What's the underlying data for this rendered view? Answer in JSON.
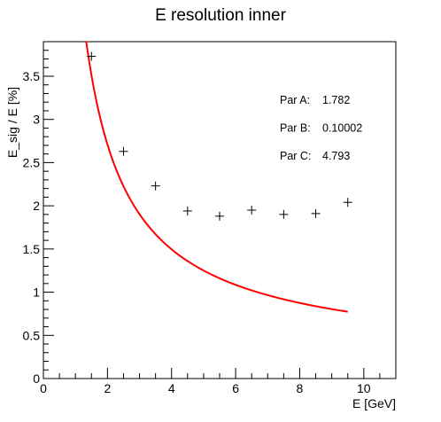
{
  "chart_data": {
    "type": "scatter",
    "title": "E resolution inner",
    "xlabel": "E [GeV]",
    "ylabel": "E_sig / E [%]",
    "xlim": [
      0,
      11
    ],
    "ylim": [
      0,
      3.9
    ],
    "x_ticks": [
      0,
      2,
      4,
      6,
      8,
      10
    ],
    "y_ticks": [
      0,
      0.5,
      1,
      1.5,
      2,
      2.5,
      3,
      3.5
    ],
    "grid": false,
    "series": [
      {
        "marker": "cross",
        "color": "#000000",
        "x": [
          1.5,
          2.5,
          3.5,
          4.5,
          5.5,
          6.5,
          7.5,
          8.5,
          9.5
        ],
        "y": [
          3.73,
          2.63,
          2.23,
          1.94,
          1.88,
          1.95,
          1.9,
          1.91,
          2.04
        ]
      }
    ],
    "fit": {
      "color": "#ff0000",
      "x_range": [
        1.3,
        9.5
      ],
      "parameters": [
        {
          "label": "Par A:",
          "value": "1.782"
        },
        {
          "label": "Par B:",
          "value": "0.10002"
        },
        {
          "label": "Par C:",
          "value": "4.793"
        }
      ]
    }
  }
}
